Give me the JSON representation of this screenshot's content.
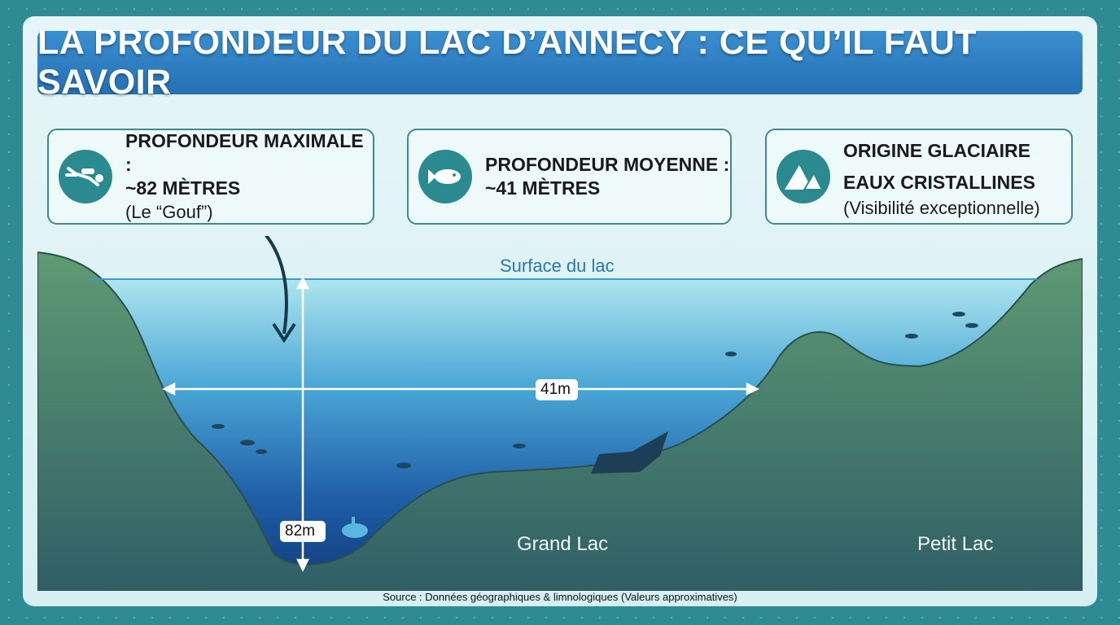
{
  "title": "LA PROFONDEUR DU LAC D’ANNECY : CE QU’IL FAUT SAVOIR",
  "cards": [
    {
      "icon": "diver-icon",
      "line1": "PROFONDEUR MAXIMALE :",
      "line2": "~82 MÈTRES",
      "line3": "(Le “Gouf”)"
    },
    {
      "icon": "fish-icon",
      "line1": "PROFONDEUR MOYENNE :",
      "line2": "~41 MÈTRES"
    },
    {
      "icon": "mountain-icon",
      "line1": "ORIGINE GLACIAIRE",
      "line2": "EAUX CRISTALLINES",
      "line3": "(Visibilité exceptionnelle)"
    }
  ],
  "diagram": {
    "surface_label": "Surface du lac",
    "mean_depth_label": "41m",
    "max_depth_label": "82m",
    "grand_lac": "Grand Lac",
    "petit_lac": "Petit Lac"
  },
  "colors": {
    "frame": "#2e8b93",
    "title_bar": "#2b7cc0",
    "icon_bg": "#2a8a90",
    "land": "#4a8a6e",
    "deep_water": "#0f3a78",
    "surface_water": "#aee6ee"
  },
  "source": "Source : Données géographiques & limnologiques (Valeurs approximatives)"
}
